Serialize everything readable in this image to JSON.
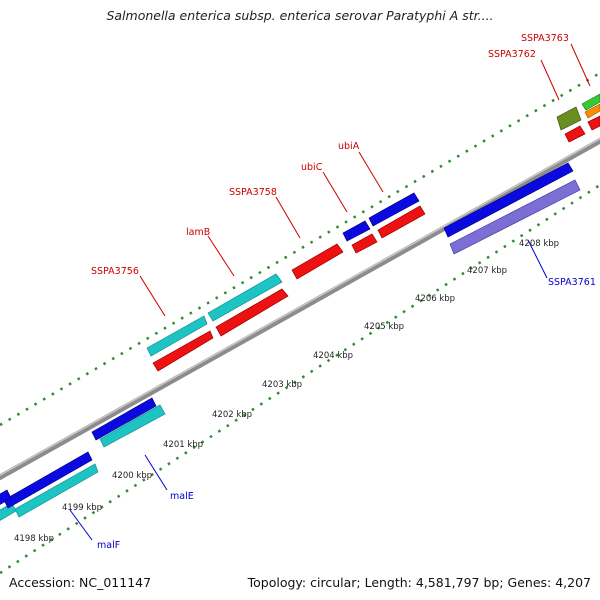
{
  "title": "Salmonella enterica subsp. enterica serovar Paratyphi A str....",
  "footer": {
    "accession": "Accession: NC_011147",
    "summary": "Topology: circular; Length: 4,581,797 bp; Genes: 4,207"
  },
  "colors": {
    "backbone": "#8c8c8c",
    "tick": "#2e8b2e",
    "label_forward": "#cc0000",
    "label_reverse": "#0000cc"
  },
  "ticks": [
    {
      "label": "4198 kbp"
    },
    {
      "label": "4199 kbp"
    },
    {
      "label": "4200 kbp"
    },
    {
      "label": "4201 kbp"
    },
    {
      "label": "4202 kbp"
    },
    {
      "label": "4203 kbp"
    },
    {
      "label": "4204 kbp"
    },
    {
      "label": "4205 kbp"
    },
    {
      "label": "4206 kbp"
    },
    {
      "label": "4207 kbp"
    },
    {
      "label": "4208 kbp"
    }
  ],
  "gene_labels": [
    {
      "text": "SSPA3756",
      "strand": "forward"
    },
    {
      "text": "lamB",
      "strand": "forward"
    },
    {
      "text": "SSPA3758",
      "strand": "forward"
    },
    {
      "text": "ubiC",
      "strand": "forward"
    },
    {
      "text": "ubiA",
      "strand": "forward"
    },
    {
      "text": "SSPA3762",
      "strand": "forward"
    },
    {
      "text": "SSPA3763",
      "strand": "forward"
    },
    {
      "text": "malE",
      "strand": "reverse"
    },
    {
      "text": "malF",
      "strand": "reverse"
    },
    {
      "text": "SSPA3761",
      "strand": "reverse"
    }
  ]
}
